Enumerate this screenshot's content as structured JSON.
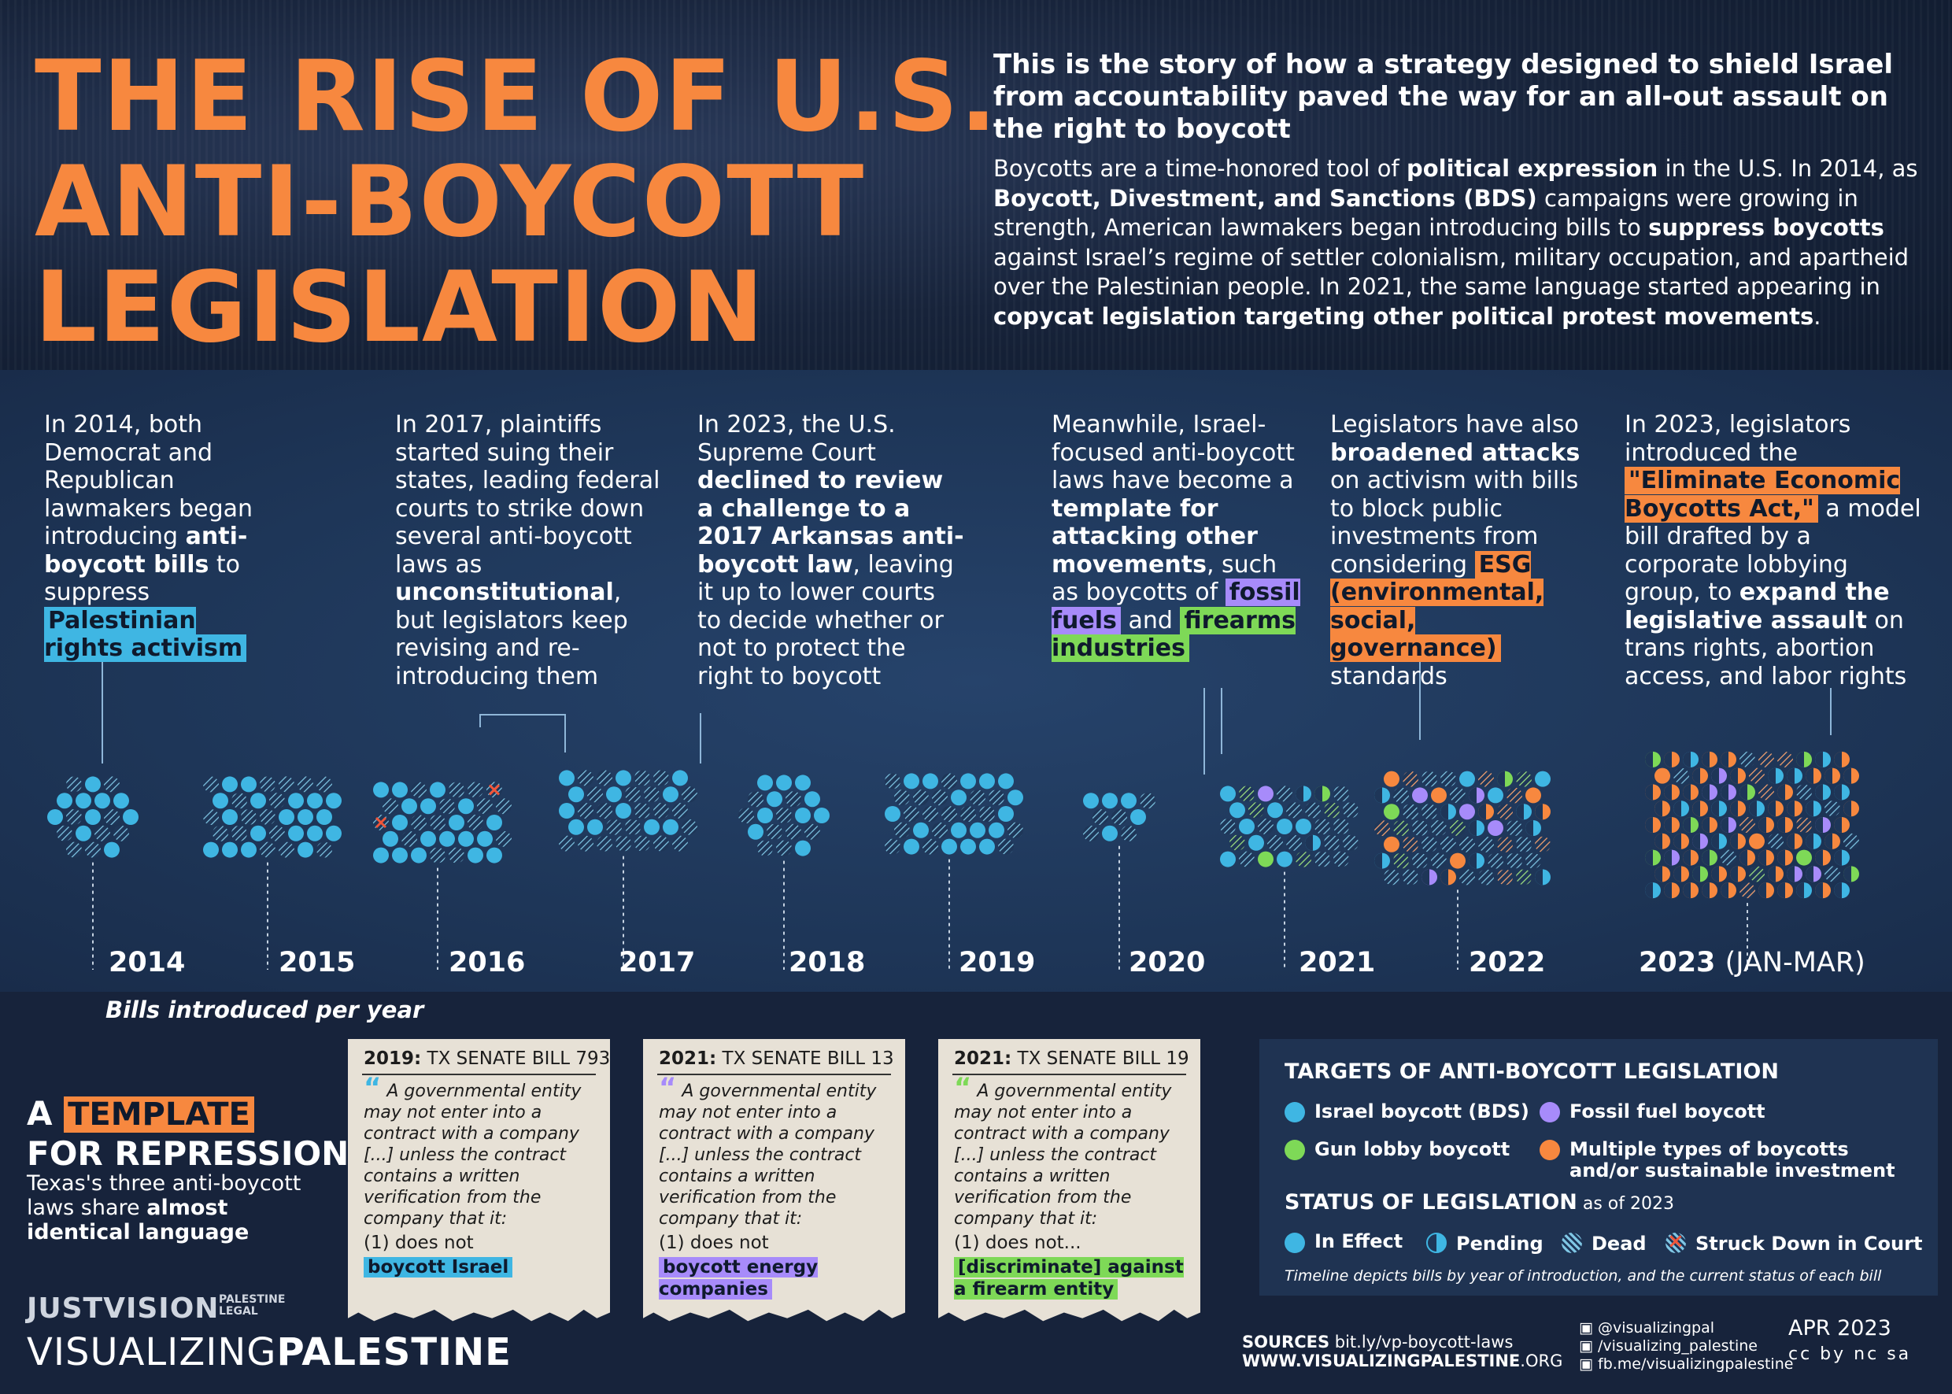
{
  "header": {
    "title_lines": [
      "THE RISE OF U.S.",
      "ANTI-BOYCOTT",
      "LEGISLATION"
    ],
    "lede": "This is the story of how a strategy designed to shield Israel from accountability paved the way for an all-out assault on the right to boycott",
    "intro": {
      "p1": "Boycotts are a time-honored tool of ",
      "b1": "political expression",
      "p2": " in the U.S. In 2014, as ",
      "b2": "Boycott, Divestment, and Sanctions (BDS)",
      "p3": " campaigns were growing in strength, American lawmakers began introducing bills to ",
      "b3": "suppress boycotts",
      "p4": " against Israel’s regime of settler colonialism, military occupation, and apartheid over the Palestinian people. In 2021, the same language started appearing in ",
      "b4": "copycat legislation targeting other political protest movements",
      "p5": "."
    }
  },
  "blurbs": {
    "b2014": {
      "t1": "In 2014, both Democrat and Republican lawmakers began introducing ",
      "t2": "anti-boycott bills",
      "t3": " to suppress ",
      "hl": "Palestinian rights activism"
    },
    "b2017": {
      "t1": "In 2017, plaintiffs started suing their states, leading federal courts to strike down several anti-boycott laws as ",
      "t2": "unconstitutional",
      "t3": ", but legislators keep revising and re-introducing them"
    },
    "b2023court": {
      "t1": "In 2023, the U.S. Supreme Court ",
      "t2": "declined to review a challenge to a 2017 Arkansas anti-boycott law",
      "t3": ", leaving it up to lower courts to decide whether or not  to protect the right to boycott"
    },
    "bmeanwhile": {
      "t1": "Meanwhile, Israel-focused anti-boycott laws have become a ",
      "t2": "template for attacking other movements",
      "t3": ", such as boycotts of ",
      "hl1": "fossil fuels",
      "t4": " and ",
      "hl2": "firearms industries"
    },
    "besg": {
      "t1": "Legislators have also ",
      "t2": "broadened attacks",
      "t3": " on activism with bills to block public investments from considering ",
      "hl": "ESG (environmental, social, governance)",
      "t4": " standards"
    },
    "b2023": {
      "t1": "In 2023, legislators introduced the ",
      "hl": "\"Eliminate Economic Boycotts Act,\"",
      "t2": " a model bill drafted by a corporate lobbying group, to ",
      "t3": "expand the legislative assault",
      "t4": " on trans rights, abortion access, and labor rights"
    }
  },
  "chart_data": {
    "type": "dot-cluster timeline",
    "title": "Bills introduced per year",
    "categories": [
      "2014",
      "2015",
      "2016",
      "2017",
      "2018",
      "2019",
      "2020",
      "2021",
      "2022",
      "2023"
    ],
    "category_note": {
      "2023": "(JAN-MAR)"
    },
    "series": [
      {
        "name": "Israel boycott (BDS)",
        "color": "#3fb6e3"
      },
      {
        "name": "Fossil fuel boycott",
        "color": "#a78bfa"
      },
      {
        "name": "Gun lobby boycott",
        "color": "#7ed957"
      },
      {
        "name": "Multiple types of boycotts and/or sustainable investment",
        "color": "#f7883f"
      }
    ],
    "statuses": [
      "In Effect",
      "Pending",
      "Dead",
      "Struck Down in Court"
    ],
    "bills": [
      {
        "year": "2014",
        "total": 19,
        "inEffect": 10,
        "dead": 9,
        "struck": 0,
        "pending": 0,
        "israel": 19,
        "fossil": 0,
        "gun": 0,
        "multi": 0
      },
      {
        "year": "2015",
        "total": 36,
        "inEffect": 19,
        "dead": 17,
        "struck": 0,
        "pending": 0,
        "israel": 36,
        "fossil": 0,
        "gun": 0,
        "multi": 0
      },
      {
        "year": "2016",
        "total": 52,
        "inEffect": 28,
        "dead": 21,
        "struck": 3,
        "pending": 0,
        "israel": 52,
        "fossil": 0,
        "gun": 0,
        "multi": 0
      },
      {
        "year": "2017",
        "total": 49,
        "inEffect": 20,
        "dead": 28,
        "struck": 1,
        "pending": 0,
        "israel": 49,
        "fossil": 0,
        "gun": 0,
        "multi": 0
      },
      {
        "year": "2018",
        "total": 19,
        "inEffect": 10,
        "dead": 9,
        "struck": 0,
        "pending": 0,
        "israel": 19,
        "fossil": 0,
        "gun": 0,
        "multi": 0
      },
      {
        "year": "2019",
        "total": 38,
        "inEffect": 19,
        "dead": 19,
        "struck": 0,
        "pending": 0,
        "israel": 38,
        "fossil": 0,
        "gun": 0,
        "multi": 0
      },
      {
        "year": "2020",
        "total": 10,
        "inEffect": 5,
        "dead": 5,
        "struck": 0,
        "pending": 0,
        "israel": 10,
        "fossil": 0,
        "gun": 0,
        "multi": 0
      },
      {
        "year": "2021",
        "total": 48,
        "inEffect": 14,
        "dead": 30,
        "struck": 0,
        "pending": 4,
        "israel": 34,
        "fossil": 6,
        "gun": 8,
        "multi": 0
      },
      {
        "year": "2022",
        "total": 66,
        "inEffect": 12,
        "dead": 38,
        "struck": 0,
        "pending": 16,
        "israel": 28,
        "fossil": 12,
        "gun": 8,
        "multi": 18
      },
      {
        "year": "2023",
        "total": 150,
        "inEffect": 5,
        "dead": 30,
        "struck": 0,
        "pending": 115,
        "israel": 30,
        "fossil": 18,
        "gun": 14,
        "multi": 88
      }
    ]
  },
  "template": {
    "a": "A",
    "hl": "TEMPLATE",
    "line2": "FOR REPRESSION",
    "sub1": "Texas's three anti-boycott laws share ",
    "sub2": "almost identical language",
    "quote": "A governmental entity may not enter into a contract with a company [...] unless the contract contains a written verification from the company that it:",
    "bills": [
      {
        "year": "2019:",
        "name": "TX SENATE BILL 793",
        "point": "(1)  does not",
        "value": "boycott Israel",
        "color": "#3fb6e3"
      },
      {
        "year": "2021:",
        "name": "TX SENATE BILL 13",
        "point": "(1)  does not",
        "value": "boycott energy companies",
        "color": "#a78bfa"
      },
      {
        "year": "2021:",
        "name": "TX SENATE BILL 19",
        "point": "(1)  does not...",
        "value": "[discriminate] against a firearm entity",
        "color": "#7ed957"
      }
    ]
  },
  "legend": {
    "targets_title": "TARGETS  OF  ANTI-BOYCOTT LEGISLATION",
    "israel": "Israel boycott (BDS)",
    "fossil": "Fossil fuel boycott",
    "gun": "Gun lobby boycott",
    "multi": "Multiple types of boycotts and/or sustainable investment",
    "status_title": "STATUS  OF LEGISLATION",
    "status_asof": " as of 2023",
    "in_effect": "In Effect",
    "pending": "Pending",
    "dead": "Dead",
    "struck": "Struck Down in Court",
    "note": "Timeline depicts bills by year of introduction, and the current status of each bill"
  },
  "footer": {
    "justvision": "JUSTVISION",
    "palestine_legal": "PALESTINE LEGAL",
    "vp_light": "VISUALIZING",
    "vp_bold": "PALESTINE",
    "sources_label": "SOURCES",
    "sources_url": " bit.ly/vp-boycott-laws",
    "site_bold": "WWW.VISUALIZINGPALESTINE",
    "site_rest": ".ORG",
    "twitter": "@visualizingpal",
    "instagram": "/visualizing_palestine",
    "facebook": "fb.me/visualizingpalestine",
    "date": "APR 2023",
    "license": "cc by nc sa"
  }
}
